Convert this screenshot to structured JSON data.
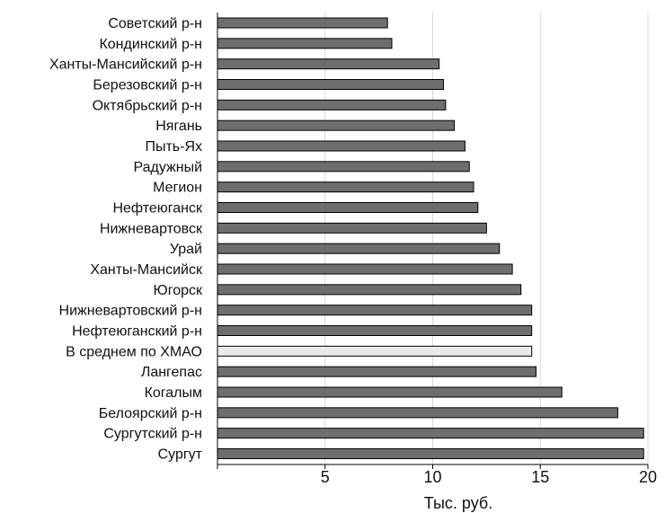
{
  "chart_data": {
    "type": "bar",
    "orientation": "horizontal",
    "categories": [
      "Советский  р-н",
      "Кондинский р-н",
      "Ханты-Мансийский р-н",
      "Березовский р-н",
      "Октябрьский р-н",
      "Нягань",
      "Пыть-Ях",
      "Радужный",
      "Мегион",
      "Нефтеюганск",
      "Нижневартовск",
      "Урай",
      "Ханты-Мансийск",
      "Югорск",
      "Нижневартовский р-н",
      "Нефтеюганский р-н",
      "В среднем по ХМАО",
      "Лангепас",
      "Когалым",
      "Белоярский р-н",
      "Сургутский р-н",
      "Сургут"
    ],
    "values": [
      7.9,
      8.1,
      10.3,
      10.5,
      10.6,
      11.0,
      11.5,
      11.7,
      11.9,
      12.1,
      12.5,
      13.1,
      13.7,
      14.1,
      14.6,
      14.6,
      14.6,
      14.8,
      16.0,
      18.6,
      19.8,
      19.8
    ],
    "highlight_category": "В среднем по ХМАО",
    "xlabel": "Тыс. руб.",
    "xlim": [
      0,
      20
    ],
    "xticks": [
      5,
      10,
      15,
      20
    ],
    "grid": "vertical",
    "colors": {
      "bar": "#6e6e6e",
      "highlight_bar": "#eaeaea",
      "bar_stroke": "#000000",
      "grid": "#d9d9d9",
      "axis": "#000000"
    }
  }
}
